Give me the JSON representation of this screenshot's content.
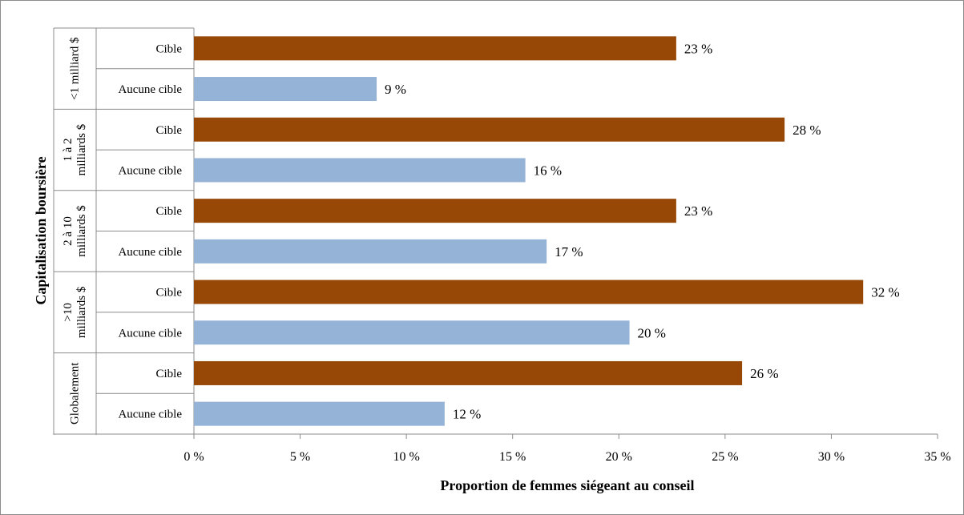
{
  "chart_data": {
    "type": "bar",
    "orientation": "horizontal",
    "xlabel": "Proportion de femmes siégeant au conseil",
    "ylabel": "Capitalisation boursière",
    "xlim": [
      0,
      35
    ],
    "xticks": [
      0,
      5,
      10,
      15,
      20,
      25,
      30,
      35
    ],
    "xtick_labels": [
      "0 %",
      "5 %",
      "10 %",
      "15 %",
      "20 %",
      "25 %",
      "30 %",
      "35 %"
    ],
    "grid": false,
    "groups": [
      {
        "label": "<1 milliard $",
        "lines": [
          "<1 milliard $"
        ],
        "bars": [
          {
            "category": "Cible",
            "value": 22.7,
            "label": "23 %",
            "color": "#974706"
          },
          {
            "category": "Aucune cible",
            "value": 8.6,
            "label": "9 %",
            "color": "#95b3d7"
          }
        ]
      },
      {
        "label": "1 à 2 milliards $",
        "lines": [
          "1 à 2",
          "milliards $"
        ],
        "bars": [
          {
            "category": "Cible",
            "value": 27.8,
            "label": "28 %",
            "color": "#974706"
          },
          {
            "category": "Aucune cible",
            "value": 15.6,
            "label": "16 %",
            "color": "#95b3d7"
          }
        ]
      },
      {
        "label": "2 à 10 milliards $",
        "lines": [
          "2 à 10",
          "milliards $"
        ],
        "bars": [
          {
            "category": "Cible",
            "value": 22.7,
            "label": "23 %",
            "color": "#974706"
          },
          {
            "category": "Aucune cible",
            "value": 16.6,
            "label": "17 %",
            "color": "#95b3d7"
          }
        ]
      },
      {
        "label": ">10 milliards $",
        "lines": [
          ">10",
          "milliards $"
        ],
        "bars": [
          {
            "category": "Cible",
            "value": 31.5,
            "label": "32 %",
            "color": "#974706"
          },
          {
            "category": "Aucune cible",
            "value": 20.5,
            "label": "20 %",
            "color": "#95b3d7"
          }
        ]
      },
      {
        "label": "Globalement",
        "lines": [
          "Globalement"
        ],
        "bars": [
          {
            "category": "Cible",
            "value": 25.8,
            "label": "26 %",
            "color": "#974706"
          },
          {
            "category": "Aucune cible",
            "value": 11.8,
            "label": "12 %",
            "color": "#95b3d7"
          }
        ]
      }
    ]
  }
}
